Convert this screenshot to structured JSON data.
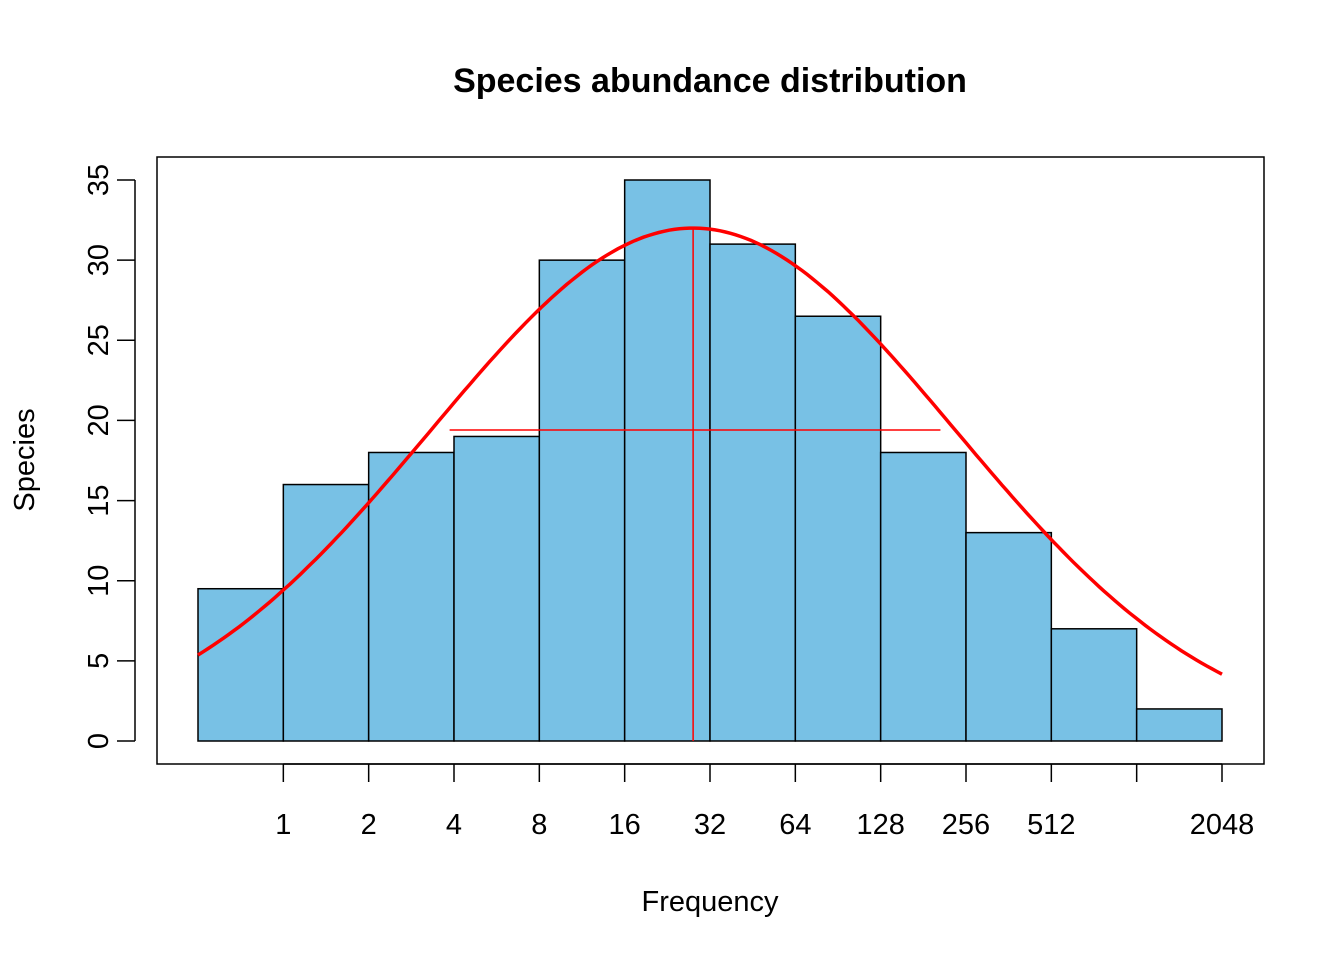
{
  "chart_data": {
    "type": "bar",
    "title": "Species abundance distribution",
    "xlabel": "Frequency",
    "ylabel": "Species",
    "x_scale": "log2",
    "bins": [
      {
        "lo": 0.5,
        "hi": 1,
        "value": 9.5
      },
      {
        "lo": 1,
        "hi": 2,
        "value": 16
      },
      {
        "lo": 2,
        "hi": 4,
        "value": 18
      },
      {
        "lo": 4,
        "hi": 8,
        "value": 19
      },
      {
        "lo": 8,
        "hi": 16,
        "value": 30
      },
      {
        "lo": 16,
        "hi": 32,
        "value": 35
      },
      {
        "lo": 32,
        "hi": 64,
        "value": 31
      },
      {
        "lo": 64,
        "hi": 128,
        "value": 26.5
      },
      {
        "lo": 128,
        "hi": 256,
        "value": 18
      },
      {
        "lo": 256,
        "hi": 512,
        "value": 13
      },
      {
        "lo": 512,
        "hi": 1024,
        "value": 7
      },
      {
        "lo": 1024,
        "hi": 2048,
        "value": 2
      }
    ],
    "x_tick_positions": [
      1,
      2,
      4,
      8,
      16,
      32,
      64,
      128,
      256,
      512,
      1024,
      2048
    ],
    "x_tick_labels": [
      "1",
      "2",
      "4",
      "8",
      "16",
      "32",
      "64",
      "128",
      "256",
      "512",
      "",
      "2048"
    ],
    "y_ticks": [
      0,
      5,
      10,
      15,
      20,
      25,
      30,
      35
    ],
    "xlim": [
      0.5,
      2048
    ],
    "ylim": [
      0,
      35
    ],
    "fit_curve": {
      "type": "gaussian",
      "peak": 32,
      "mode_x": 27.9,
      "sd_log2": 3.07,
      "x_range": [
        0.5,
        2048
      ],
      "color": "#ff0000"
    },
    "mode_line": {
      "x": 27.9,
      "y_top": 32
    },
    "half_width_line": {
      "y": 19.4,
      "x_range": [
        3.86,
        208
      ]
    },
    "bar_color": "#78c1e5",
    "bar_edge": "#000000",
    "grid": false,
    "legend": "none"
  }
}
